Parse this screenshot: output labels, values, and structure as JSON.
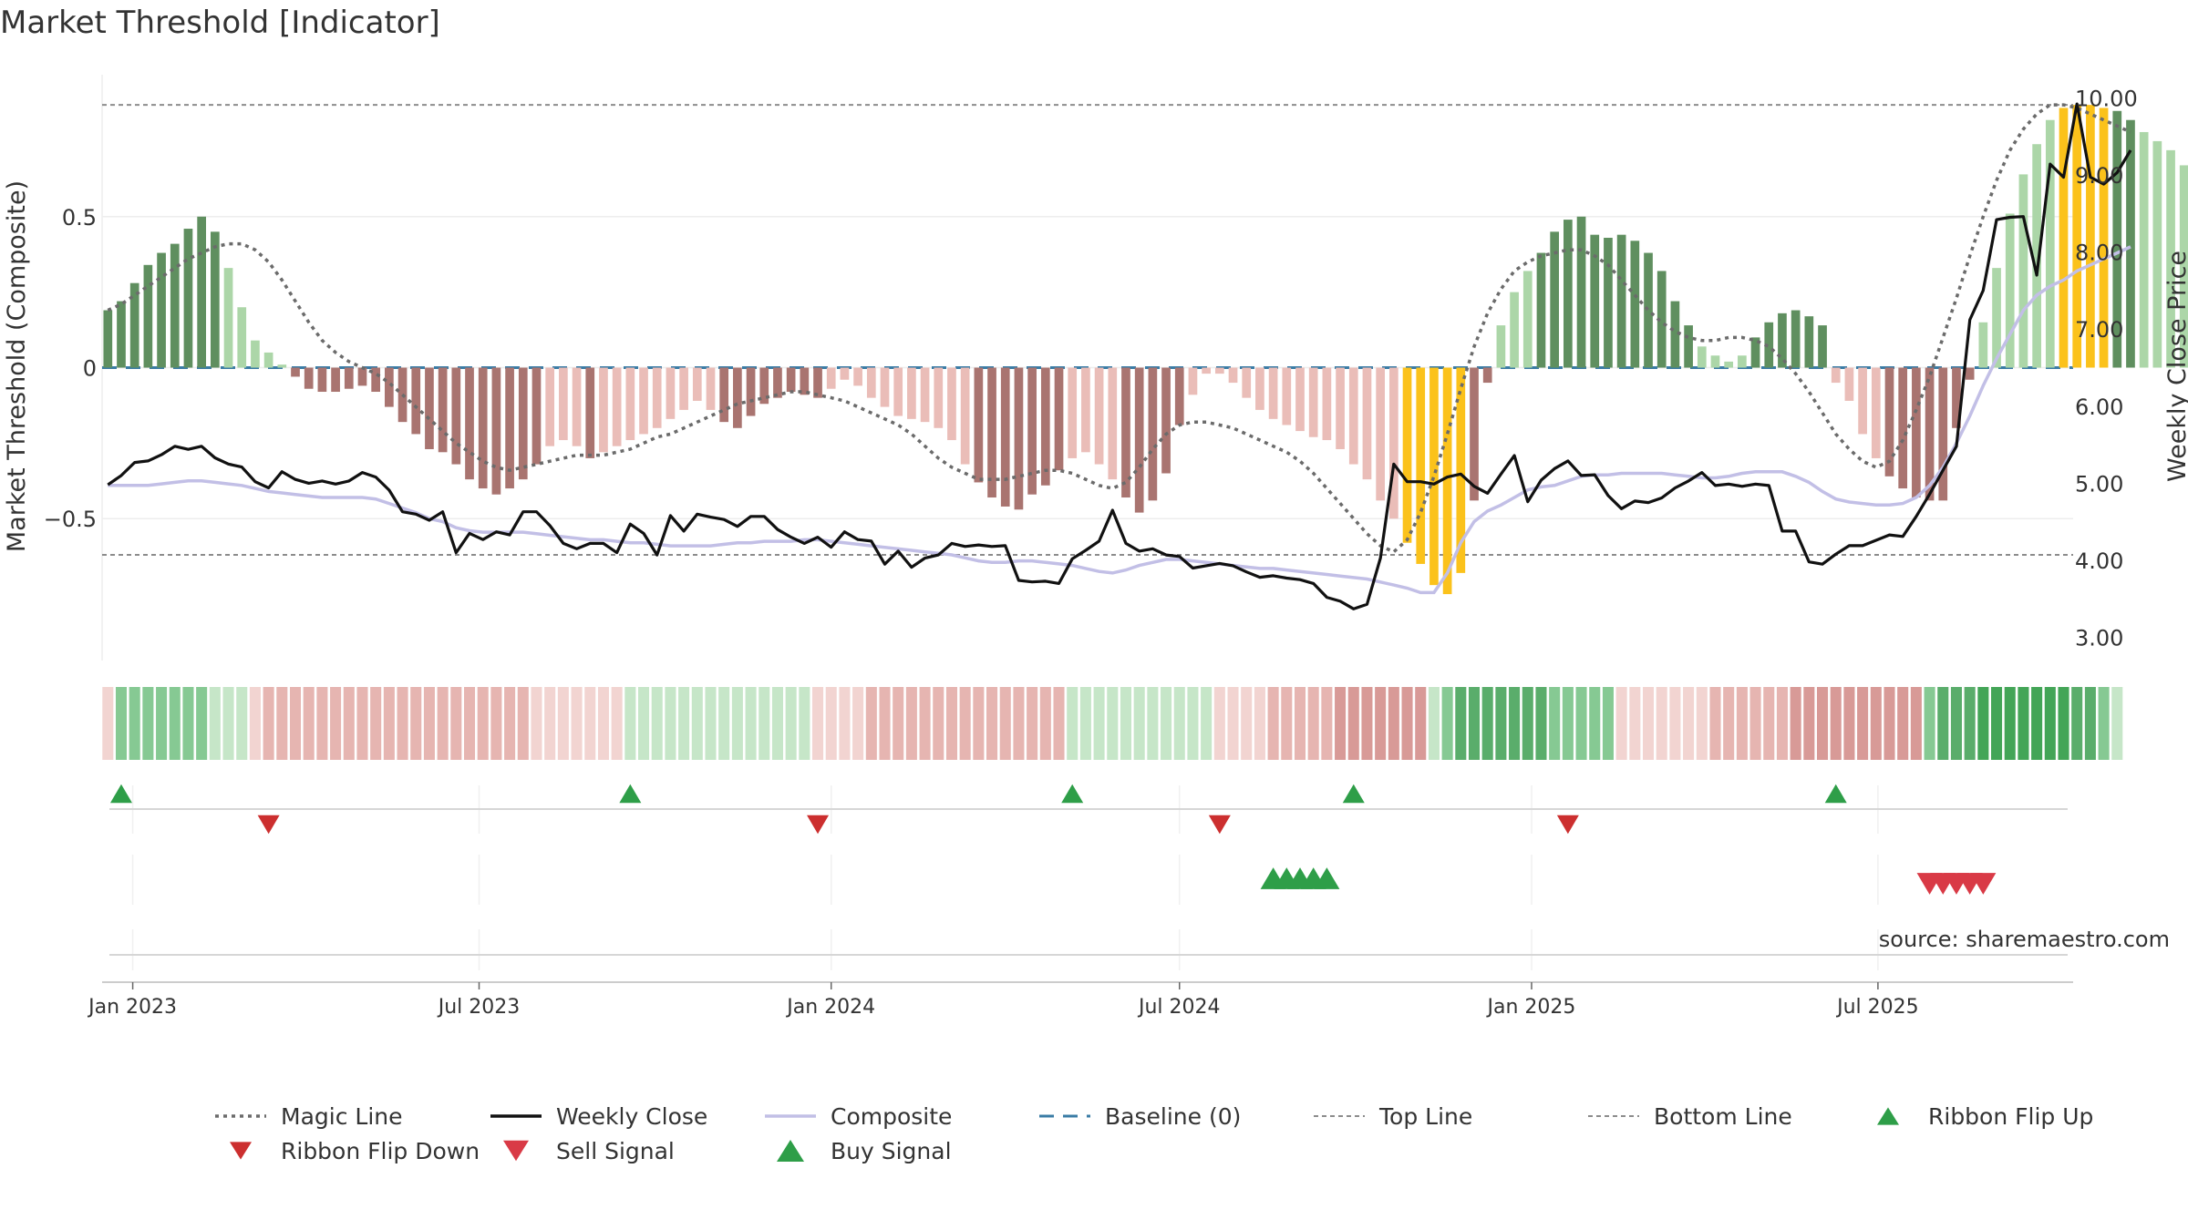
{
  "title": "Market Threshold [Indicator]",
  "source": "source: sharemaestro.com",
  "colors": {
    "bull_strong": "#5f8f5f",
    "bull_weak": "#acd6a8",
    "bear_strong": "#a97470",
    "bear_weak": "#eabdb8",
    "extreme": "#fbc21b",
    "weekly_close": "#111111",
    "composite": "#c2bfe6",
    "magic": "#6b6b6b",
    "baseline": "#3a7ca5",
    "buy": "#2e9e48",
    "sell": "#d93a46"
  },
  "legend": [
    {
      "label": "Magic Line",
      "icon": "dotted-line"
    },
    {
      "label": "Weekly Close",
      "icon": "solid-line"
    },
    {
      "label": "Composite",
      "icon": "lavender-line"
    },
    {
      "label": "Baseline (0)",
      "icon": "dashed-line"
    },
    {
      "label": "Top Line",
      "icon": "thin-dashed-line"
    },
    {
      "label": "Bottom Line",
      "icon": "thin-dashed-line"
    },
    {
      "label": "Ribbon Flip Up",
      "icon": "green-triangle-up"
    },
    {
      "label": "Ribbon Flip Down",
      "icon": "red-triangle-down"
    },
    {
      "label": "Sell Signal",
      "icon": "red-triangle-down"
    },
    {
      "label": "Buy Signal",
      "icon": "green-triangle-up"
    }
  ],
  "chart_data": {
    "type": "bar",
    "ylabel": "Market Threshold (Composite)",
    "y2label": "Weekly Close Price",
    "ylim": [
      -0.97,
      0.97
    ],
    "y2lim": [
      2.7,
      10.3
    ],
    "yticks": [
      -0.5,
      0,
      0.5
    ],
    "ytick_labels": [
      "−0.5",
      "0",
      "0.5"
    ],
    "y2ticks": [
      3,
      4,
      5,
      6,
      7,
      8,
      9,
      10
    ],
    "y2tick_labels": [
      "3.00",
      "4.00",
      "5.00",
      "6.00",
      "7.00",
      "8.00",
      "9.00",
      "10.00"
    ],
    "top_line": 0.87,
    "bottom_line": -0.62,
    "xlim": [
      "2022-12-16",
      "2025-10-11"
    ],
    "x_ticks": [
      {
        "date": "2023-01-01",
        "label": "Jan 2023"
      },
      {
        "date": "2023-07-01",
        "label": "Jul 2023"
      },
      {
        "date": "2024-01-01",
        "label": "Jan 2024"
      },
      {
        "date": "2024-07-01",
        "label": "Jul 2024"
      },
      {
        "date": "2025-01-01",
        "label": "Jan 2025"
      },
      {
        "date": "2025-07-01",
        "label": "Jul 2025"
      }
    ],
    "week_start": "2022-12-19",
    "composite_bars": [
      0.19,
      0.22,
      0.28,
      0.34,
      0.38,
      0.41,
      0.46,
      0.5,
      0.45,
      0.33,
      0.2,
      0.09,
      0.05,
      0.01,
      -0.03,
      -0.07,
      -0.08,
      -0.08,
      -0.07,
      -0.06,
      -0.08,
      -0.13,
      -0.18,
      -0.22,
      -0.27,
      -0.28,
      -0.32,
      -0.37,
      -0.4,
      -0.42,
      -0.4,
      -0.37,
      -0.32,
      -0.26,
      -0.24,
      -0.26,
      -0.3,
      -0.28,
      -0.26,
      -0.24,
      -0.22,
      -0.2,
      -0.17,
      -0.14,
      -0.11,
      -0.14,
      -0.18,
      -0.2,
      -0.16,
      -0.12,
      -0.1,
      -0.08,
      -0.09,
      -0.1,
      -0.07,
      -0.04,
      -0.06,
      -0.1,
      -0.13,
      -0.16,
      -0.17,
      -0.18,
      -0.2,
      -0.24,
      -0.32,
      -0.38,
      -0.43,
      -0.46,
      -0.47,
      -0.42,
      -0.39,
      -0.34,
      -0.3,
      -0.28,
      -0.32,
      -0.37,
      -0.43,
      -0.48,
      -0.44,
      -0.35,
      -0.19,
      -0.09,
      -0.02,
      -0.02,
      -0.05,
      -0.1,
      -0.14,
      -0.17,
      -0.19,
      -0.21,
      -0.23,
      -0.24,
      -0.27,
      -0.32,
      -0.37,
      -0.44,
      -0.5,
      -0.58,
      -0.65,
      -0.72,
      -0.75,
      -0.68,
      -0.44,
      -0.05,
      0.14,
      0.25,
      0.32,
      0.38,
      0.45,
      0.49,
      0.5,
      0.44,
      0.43,
      0.44,
      0.42,
      0.38,
      0.32,
      0.22,
      0.14,
      0.07,
      0.04,
      0.02,
      0.04,
      0.1,
      0.15,
      0.18,
      0.19,
      0.17,
      0.14,
      -0.05,
      -0.11,
      -0.22,
      -0.3,
      -0.36,
      -0.4,
      -0.43,
      -0.44,
      -0.44,
      -0.2,
      -0.04,
      0.15,
      0.33,
      0.51,
      0.64,
      0.74,
      0.82,
      0.86,
      0.87,
      0.87,
      0.86,
      0.85,
      0.82,
      0.78,
      0.75,
      0.72,
      0.67
    ],
    "magic_line": [
      0.19,
      0.21,
      0.24,
      0.27,
      0.3,
      0.33,
      0.36,
      0.38,
      0.4,
      0.41,
      0.41,
      0.39,
      0.35,
      0.29,
      0.22,
      0.15,
      0.09,
      0.05,
      0.02,
      0.0,
      -0.02,
      -0.05,
      -0.09,
      -0.13,
      -0.17,
      -0.21,
      -0.25,
      -0.28,
      -0.31,
      -0.33,
      -0.34,
      -0.33,
      -0.32,
      -0.31,
      -0.3,
      -0.29,
      -0.29,
      -0.29,
      -0.28,
      -0.27,
      -0.25,
      -0.23,
      -0.22,
      -0.2,
      -0.18,
      -0.16,
      -0.14,
      -0.12,
      -0.11,
      -0.1,
      -0.09,
      -0.08,
      -0.08,
      -0.09,
      -0.1,
      -0.11,
      -0.13,
      -0.15,
      -0.17,
      -0.19,
      -0.22,
      -0.26,
      -0.3,
      -0.33,
      -0.35,
      -0.37,
      -0.37,
      -0.37,
      -0.36,
      -0.35,
      -0.34,
      -0.34,
      -0.35,
      -0.37,
      -0.39,
      -0.4,
      -0.38,
      -0.33,
      -0.27,
      -0.22,
      -0.19,
      -0.18,
      -0.18,
      -0.19,
      -0.2,
      -0.22,
      -0.24,
      -0.26,
      -0.28,
      -0.31,
      -0.35,
      -0.4,
      -0.45,
      -0.5,
      -0.55,
      -0.59,
      -0.61,
      -0.57,
      -0.48,
      -0.36,
      -0.22,
      -0.07,
      0.07,
      0.18,
      0.26,
      0.32,
      0.35,
      0.37,
      0.38,
      0.39,
      0.39,
      0.37,
      0.34,
      0.29,
      0.24,
      0.19,
      0.15,
      0.12,
      0.1,
      0.09,
      0.09,
      0.1,
      0.1,
      0.09,
      0.07,
      0.03,
      -0.02,
      -0.08,
      -0.15,
      -0.22,
      -0.27,
      -0.31,
      -0.33,
      -0.31,
      -0.24,
      -0.14,
      -0.03,
      0.1,
      0.23,
      0.37,
      0.5,
      0.62,
      0.72,
      0.79,
      0.84,
      0.87,
      0.87,
      0.86,
      0.84,
      0.82,
      0.8,
      0.78
    ],
    "composite_line": [
      -0.39,
      -0.39,
      -0.39,
      -0.39,
      -0.385,
      -0.38,
      -0.375,
      -0.375,
      -0.38,
      -0.385,
      -0.39,
      -0.4,
      -0.41,
      -0.415,
      -0.42,
      -0.425,
      -0.43,
      -0.43,
      -0.43,
      -0.43,
      -0.435,
      -0.45,
      -0.465,
      -0.48,
      -0.5,
      -0.51,
      -0.53,
      -0.54,
      -0.545,
      -0.545,
      -0.545,
      -0.545,
      -0.55,
      -0.555,
      -0.56,
      -0.565,
      -0.57,
      -0.57,
      -0.575,
      -0.58,
      -0.58,
      -0.585,
      -0.59,
      -0.59,
      -0.59,
      -0.59,
      -0.585,
      -0.58,
      -0.58,
      -0.575,
      -0.575,
      -0.575,
      -0.57,
      -0.57,
      -0.575,
      -0.58,
      -0.585,
      -0.59,
      -0.595,
      -0.6,
      -0.605,
      -0.61,
      -0.615,
      -0.62,
      -0.63,
      -0.64,
      -0.645,
      -0.645,
      -0.64,
      -0.64,
      -0.645,
      -0.65,
      -0.655,
      -0.665,
      -0.675,
      -0.68,
      -0.67,
      -0.655,
      -0.645,
      -0.635,
      -0.635,
      -0.64,
      -0.645,
      -0.65,
      -0.655,
      -0.66,
      -0.665,
      -0.665,
      -0.67,
      -0.675,
      -0.68,
      -0.685,
      -0.69,
      -0.695,
      -0.7,
      -0.71,
      -0.72,
      -0.73,
      -0.745,
      -0.745,
      -0.68,
      -0.58,
      -0.51,
      -0.475,
      -0.455,
      -0.43,
      -0.405,
      -0.395,
      -0.39,
      -0.375,
      -0.36,
      -0.355,
      -0.355,
      -0.35,
      -0.35,
      -0.35,
      -0.35,
      -0.355,
      -0.36,
      -0.365,
      -0.365,
      -0.36,
      -0.35,
      -0.345,
      -0.345,
      -0.345,
      -0.36,
      -0.38,
      -0.41,
      -0.435,
      -0.445,
      -0.45,
      -0.455,
      -0.455,
      -0.45,
      -0.43,
      -0.39,
      -0.33,
      -0.25,
      -0.16,
      -0.06,
      0.03,
      0.11,
      0.19,
      0.24,
      0.27,
      0.29,
      0.32,
      0.34,
      0.36,
      0.38,
      0.4
    ],
    "weekly_close": [
      4.98,
      5.1,
      5.27,
      5.29,
      5.37,
      5.48,
      5.44,
      5.48,
      5.33,
      5.25,
      5.21,
      5.02,
      4.94,
      5.15,
      5.05,
      5.0,
      5.03,
      4.99,
      5.03,
      5.14,
      5.08,
      4.91,
      4.63,
      4.6,
      4.52,
      4.63,
      4.1,
      4.35,
      4.27,
      4.37,
      4.33,
      4.63,
      4.63,
      4.45,
      4.22,
      4.15,
      4.22,
      4.22,
      4.1,
      4.47,
      4.35,
      4.07,
      4.58,
      4.38,
      4.6,
      4.56,
      4.53,
      4.44,
      4.57,
      4.57,
      4.4,
      4.3,
      4.22,
      4.3,
      4.17,
      4.37,
      4.27,
      4.25,
      3.95,
      4.12,
      3.91,
      4.03,
      4.07,
      4.22,
      4.18,
      4.2,
      4.18,
      4.19,
      3.74,
      3.72,
      3.73,
      3.7,
      4.02,
      4.13,
      4.25,
      4.65,
      4.22,
      4.12,
      4.15,
      4.07,
      4.05,
      3.9,
      3.93,
      3.96,
      3.93,
      3.85,
      3.78,
      3.8,
      3.77,
      3.75,
      3.7,
      3.52,
      3.47,
      3.37,
      3.43,
      4.03,
      5.25,
      5.02,
      5.02,
      4.99,
      5.08,
      5.12,
      4.96,
      4.87,
      5.12,
      5.36,
      4.76,
      5.04,
      5.19,
      5.29,
      5.1,
      5.11,
      4.84,
      4.67,
      4.77,
      4.75,
      4.81,
      4.94,
      5.03,
      5.14,
      4.97,
      4.99,
      4.96,
      4.99,
      4.97,
      4.38,
      4.38,
      3.98,
      3.95,
      4.08,
      4.19,
      4.19,
      4.26,
      4.33,
      4.31,
      4.57,
      4.86,
      5.17,
      5.48,
      7.12,
      7.5,
      8.42,
      8.45,
      8.46,
      7.7,
      9.14,
      8.97,
      9.92,
      8.97,
      8.88,
      9.03,
      9.32
    ],
    "ribbon": [
      {
        "w": 0,
        "lvl": -1
      },
      {
        "w": 1,
        "lvl": 2
      },
      {
        "w": 2,
        "lvl": 2
      },
      {
        "w": 3,
        "lvl": 2
      },
      {
        "w": 4,
        "lvl": 2
      },
      {
        "w": 5,
        "lvl": 2
      },
      {
        "w": 6,
        "lvl": 2
      },
      {
        "w": 7,
        "lvl": 2
      },
      {
        "w": 8,
        "lvl": 1
      },
      {
        "w": 9,
        "lvl": 1
      },
      {
        "w": 10,
        "lvl": 1
      },
      {
        "w": 11,
        "lvl": -1
      },
      {
        "w": 12,
        "lvl": -2
      },
      {
        "w": 13,
        "lvl": -2
      },
      {
        "w": 14,
        "lvl": -2
      },
      {
        "w": 15,
        "lvl": -2
      },
      {
        "w": 16,
        "lvl": -2
      },
      {
        "w": 17,
        "lvl": -2
      },
      {
        "w": 18,
        "lvl": -2
      },
      {
        "w": 19,
        "lvl": -2
      },
      {
        "w": 20,
        "lvl": -2
      },
      {
        "w": 21,
        "lvl": -2
      },
      {
        "w": 22,
        "lvl": -2
      },
      {
        "w": 23,
        "lvl": -2
      },
      {
        "w": 24,
        "lvl": -2
      },
      {
        "w": 25,
        "lvl": -2
      },
      {
        "w": 26,
        "lvl": -2
      },
      {
        "w": 27,
        "lvl": -2
      },
      {
        "w": 28,
        "lvl": -2
      },
      {
        "w": 29,
        "lvl": -2
      },
      {
        "w": 30,
        "lvl": -2
      },
      {
        "w": 31,
        "lvl": -2
      },
      {
        "w": 32,
        "lvl": -1
      },
      {
        "w": 33,
        "lvl": -1
      },
      {
        "w": 34,
        "lvl": -1
      },
      {
        "w": 35,
        "lvl": -1
      },
      {
        "w": 36,
        "lvl": -1
      },
      {
        "w": 37,
        "lvl": -1
      },
      {
        "w": 38,
        "lvl": -1
      },
      {
        "w": 39,
        "lvl": 1
      },
      {
        "w": 40,
        "lvl": 1
      },
      {
        "w": 41,
        "lvl": 1
      },
      {
        "w": 42,
        "lvl": 1
      },
      {
        "w": 43,
        "lvl": 1
      },
      {
        "w": 44,
        "lvl": 1
      },
      {
        "w": 45,
        "lvl": 1
      },
      {
        "w": 46,
        "lvl": 1
      },
      {
        "w": 47,
        "lvl": 1
      },
      {
        "w": 48,
        "lvl": 1
      },
      {
        "w": 49,
        "lvl": 1
      },
      {
        "w": 50,
        "lvl": 1
      },
      {
        "w": 51,
        "lvl": 1
      },
      {
        "w": 52,
        "lvl": 1
      },
      {
        "w": 53,
        "lvl": -1
      },
      {
        "w": 54,
        "lvl": -1
      },
      {
        "w": 55,
        "lvl": -1
      },
      {
        "w": 56,
        "lvl": -1
      },
      {
        "w": 57,
        "lvl": -2
      },
      {
        "w": 58,
        "lvl": -2
      },
      {
        "w": 59,
        "lvl": -2
      },
      {
        "w": 60,
        "lvl": -2
      },
      {
        "w": 61,
        "lvl": -2
      },
      {
        "w": 62,
        "lvl": -2
      },
      {
        "w": 63,
        "lvl": -2
      },
      {
        "w": 64,
        "lvl": -2
      },
      {
        "w": 65,
        "lvl": -2
      },
      {
        "w": 66,
        "lvl": -2
      },
      {
        "w": 67,
        "lvl": -2
      },
      {
        "w": 68,
        "lvl": -2
      },
      {
        "w": 69,
        "lvl": -2
      },
      {
        "w": 70,
        "lvl": -2
      },
      {
        "w": 71,
        "lvl": -2
      },
      {
        "w": 72,
        "lvl": 1
      },
      {
        "w": 73,
        "lvl": 1
      },
      {
        "w": 74,
        "lvl": 1
      },
      {
        "w": 75,
        "lvl": 1
      },
      {
        "w": 76,
        "lvl": 1
      },
      {
        "w": 77,
        "lvl": 1
      },
      {
        "w": 78,
        "lvl": 1
      },
      {
        "w": 79,
        "lvl": 1
      },
      {
        "w": 80,
        "lvl": 1
      },
      {
        "w": 81,
        "lvl": 1
      },
      {
        "w": 82,
        "lvl": 1
      },
      {
        "w": 83,
        "lvl": -1
      },
      {
        "w": 84,
        "lvl": -1
      },
      {
        "w": 85,
        "lvl": -1
      },
      {
        "w": 86,
        "lvl": -1
      },
      {
        "w": 87,
        "lvl": -2
      },
      {
        "w": 88,
        "lvl": -2
      },
      {
        "w": 89,
        "lvl": -2
      },
      {
        "w": 90,
        "lvl": -2
      },
      {
        "w": 91,
        "lvl": -2
      },
      {
        "w": 92,
        "lvl": -3
      },
      {
        "w": 93,
        "lvl": -3
      },
      {
        "w": 94,
        "lvl": -3
      },
      {
        "w": 95,
        "lvl": -3
      },
      {
        "w": 96,
        "lvl": -3
      },
      {
        "w": 97,
        "lvl": -3
      },
      {
        "w": 98,
        "lvl": -3
      },
      {
        "w": 99,
        "lvl": 1
      },
      {
        "w": 100,
        "lvl": 2
      },
      {
        "w": 101,
        "lvl": 3
      },
      {
        "w": 102,
        "lvl": 3
      },
      {
        "w": 103,
        "lvl": 3
      },
      {
        "w": 104,
        "lvl": 3
      },
      {
        "w": 105,
        "lvl": 3
      },
      {
        "w": 106,
        "lvl": 3
      },
      {
        "w": 107,
        "lvl": 3
      },
      {
        "w": 108,
        "lvl": 2
      },
      {
        "w": 109,
        "lvl": 2
      },
      {
        "w": 110,
        "lvl": 2
      },
      {
        "w": 111,
        "lvl": 2
      },
      {
        "w": 112,
        "lvl": 2
      },
      {
        "w": 113,
        "lvl": -1
      },
      {
        "w": 114,
        "lvl": -1
      },
      {
        "w": 115,
        "lvl": -1
      },
      {
        "w": 116,
        "lvl": -1
      },
      {
        "w": 117,
        "lvl": -1
      },
      {
        "w": 118,
        "lvl": -1
      },
      {
        "w": 119,
        "lvl": -1
      },
      {
        "w": 120,
        "lvl": -2
      },
      {
        "w": 121,
        "lvl": -2
      },
      {
        "w": 122,
        "lvl": -2
      },
      {
        "w": 123,
        "lvl": -2
      },
      {
        "w": 124,
        "lvl": -2
      },
      {
        "w": 125,
        "lvl": -2
      },
      {
        "w": 126,
        "lvl": -3
      },
      {
        "w": 127,
        "lvl": -3
      },
      {
        "w": 128,
        "lvl": -3
      },
      {
        "w": 129,
        "lvl": -3
      },
      {
        "w": 130,
        "lvl": -3
      },
      {
        "w": 131,
        "lvl": -3
      },
      {
        "w": 132,
        "lvl": -3
      },
      {
        "w": 133,
        "lvl": -3
      },
      {
        "w": 134,
        "lvl": -3
      },
      {
        "w": 135,
        "lvl": -3
      },
      {
        "w": 136,
        "lvl": 2
      },
      {
        "w": 137,
        "lvl": 3
      },
      {
        "w": 138,
        "lvl": 3
      },
      {
        "w": 139,
        "lvl": 3
      },
      {
        "w": 140,
        "lvl": 4
      },
      {
        "w": 141,
        "lvl": 4
      },
      {
        "w": 142,
        "lvl": 4
      },
      {
        "w": 143,
        "lvl": 4
      },
      {
        "w": 144,
        "lvl": 4
      },
      {
        "w": 145,
        "lvl": 4
      },
      {
        "w": 146,
        "lvl": 4
      },
      {
        "w": 147,
        "lvl": 3
      },
      {
        "w": 148,
        "lvl": 3
      },
      {
        "w": 149,
        "lvl": 2
      },
      {
        "w": 150,
        "lvl": 1
      }
    ],
    "ribbon_flip_up": [
      1,
      39,
      72,
      93,
      129
    ],
    "ribbon_flip_down": [
      12,
      53,
      83,
      109
    ],
    "buy_signals": [
      87,
      88,
      89,
      90,
      91
    ],
    "sell_signals": [
      136,
      137,
      138,
      139,
      140
    ]
  }
}
